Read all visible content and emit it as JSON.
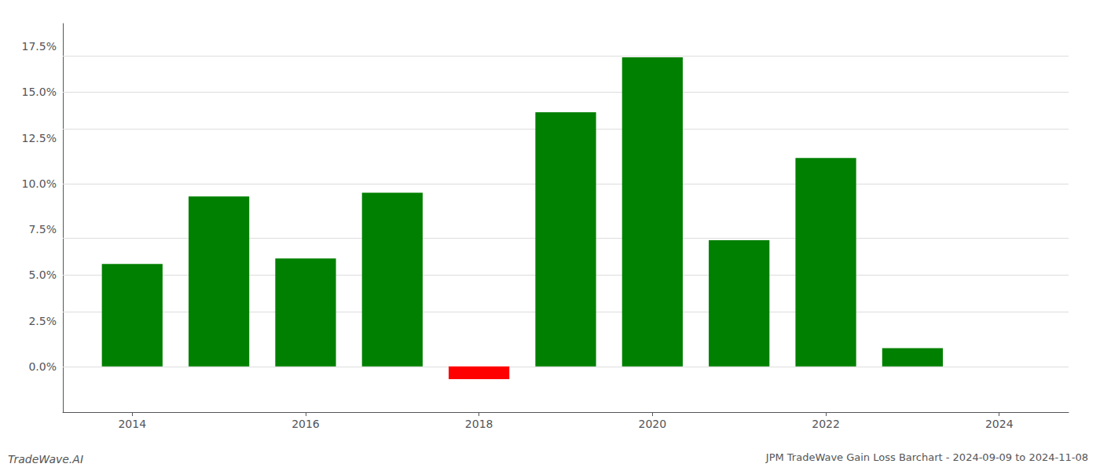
{
  "chart_data": {
    "type": "bar",
    "title": "JPM TradeWave Gain Loss Barchart - 2024-09-09 to 2024-11-08",
    "annotations": [
      "TradeWave.AI"
    ],
    "x": [
      2014,
      2015,
      2016,
      2017,
      2018,
      2019,
      2020,
      2021,
      2022,
      2023
    ],
    "values": [
      0.056,
      0.093,
      0.059,
      0.095,
      -0.007,
      0.139,
      0.169,
      0.069,
      0.114,
      0.01
    ],
    "colors": [
      "#008000",
      "#008000",
      "#008000",
      "#008000",
      "#ff0000",
      "#008000",
      "#008000",
      "#008000",
      "#008000",
      "#008000"
    ],
    "xlim": [
      2013.2,
      2024.8
    ],
    "xticks": [
      2014,
      2016,
      2018,
      2020,
      2022,
      2024
    ],
    "ylim": [
      -0.025,
      0.1875
    ],
    "yticks": [
      {
        "value": 0.0,
        "label": "0.0%"
      },
      {
        "value": 0.025,
        "label": "2.5%"
      },
      {
        "value": 0.05,
        "label": "5.0%"
      },
      {
        "value": 0.075,
        "label": "7.5%"
      },
      {
        "value": 0.1,
        "label": "10.0%"
      },
      {
        "value": 0.125,
        "label": "12.5%"
      },
      {
        "value": 0.15,
        "label": "15.0%"
      },
      {
        "value": 0.175,
        "label": "17.5%"
      }
    ],
    "grid": true
  }
}
